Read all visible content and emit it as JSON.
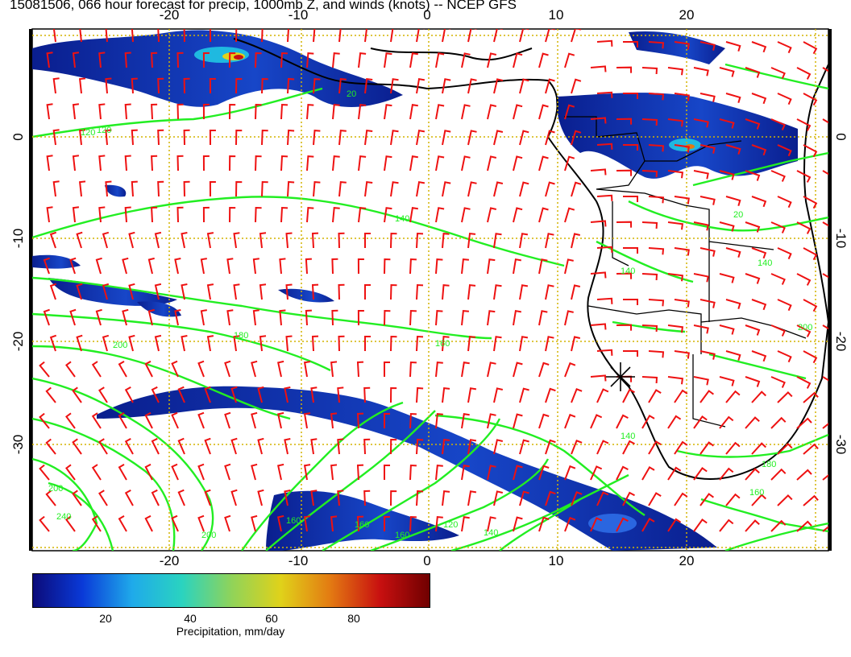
{
  "title": "15081506, 066 hour forecast for precip, 1000mb Z, and winds (knots) -- NCEP GFS",
  "map": {
    "lon_range": [
      -30,
      30
    ],
    "lat_range": [
      -40,
      10
    ],
    "x_ticks": [
      "-20",
      "-10",
      "0",
      "10",
      "20"
    ],
    "y_ticks": [
      "0",
      "-10",
      "-20",
      "-30"
    ],
    "grid": true,
    "colors": {
      "frame": "#000000",
      "grid": "#d4b400",
      "contour": "#22ee22",
      "coast": "#000000",
      "wind_barb": "#ee1111",
      "precip": "#0b2bb0"
    },
    "contour_labels": [
      "120",
      "140",
      "140",
      "160",
      "180",
      "200",
      "200",
      "200",
      "240",
      "160",
      "20",
      "20",
      "140",
      "140",
      "160",
      "180",
      "200",
      "140",
      "120",
      "160",
      "160",
      "120"
    ],
    "station_marker": "asterisk"
  },
  "colorbar": {
    "ticks": [
      "20",
      "40",
      "60",
      "80"
    ],
    "label": "Precipitation, mm/day",
    "colors": [
      "#0b0b7a",
      "#0a3ad8",
      "#1faaea",
      "#2ad3c0",
      "#8fd35a",
      "#e0d21a",
      "#e37a12",
      "#c81010",
      "#700000"
    ],
    "range": [
      0,
      100
    ]
  }
}
